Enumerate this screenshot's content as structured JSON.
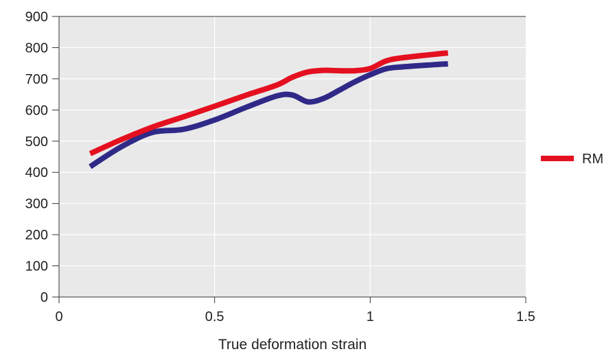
{
  "chart_data": {
    "type": "line",
    "title": "",
    "xlabel": "True deformation strain",
    "ylabel": "",
    "xlim": [
      0,
      1.5
    ],
    "ylim": [
      0,
      900
    ],
    "x_ticks": [
      {
        "value": 0,
        "label": "0"
      },
      {
        "value": 0.5,
        "label": "0.5"
      },
      {
        "value": 1,
        "label": "1"
      },
      {
        "value": 1.5,
        "label": "1.5"
      }
    ],
    "y_ticks": [
      {
        "value": 0,
        "label": "0"
      },
      {
        "value": 100,
        "label": "100"
      },
      {
        "value": 200,
        "label": "200"
      },
      {
        "value": 300,
        "label": "300"
      },
      {
        "value": 400,
        "label": "400"
      },
      {
        "value": 500,
        "label": "500"
      },
      {
        "value": 600,
        "label": "600"
      },
      {
        "value": 700,
        "label": "700"
      },
      {
        "value": 800,
        "label": "800"
      },
      {
        "value": 900,
        "label": "900"
      }
    ],
    "grid": true,
    "legend_position": "right",
    "series": [
      {
        "name": "RM",
        "color": "#e4101f",
        "x": [
          0.1,
          0.2,
          0.3,
          0.4,
          0.5,
          0.6,
          0.7,
          0.75,
          0.8,
          0.85,
          0.9,
          0.95,
          1.0,
          1.05,
          1.1,
          1.2,
          1.25
        ],
        "y": [
          460,
          505,
          545,
          578,
          612,
          647,
          680,
          705,
          722,
          727,
          726,
          726,
          733,
          757,
          767,
          778,
          783
        ]
      },
      {
        "name": "",
        "color": "#2f2a87",
        "x": [
          0.1,
          0.2,
          0.3,
          0.4,
          0.5,
          0.6,
          0.7,
          0.75,
          0.8,
          0.85,
          0.9,
          0.95,
          1.0,
          1.05,
          1.1,
          1.2,
          1.25
        ],
        "y": [
          418,
          482,
          528,
          538,
          568,
          608,
          645,
          648,
          626,
          637,
          663,
          690,
          713,
          732,
          738,
          745,
          748
        ]
      }
    ]
  },
  "colors": {
    "plot_background": "#e9e9ea",
    "grid": "#ffffff",
    "axis": "#333333"
  }
}
